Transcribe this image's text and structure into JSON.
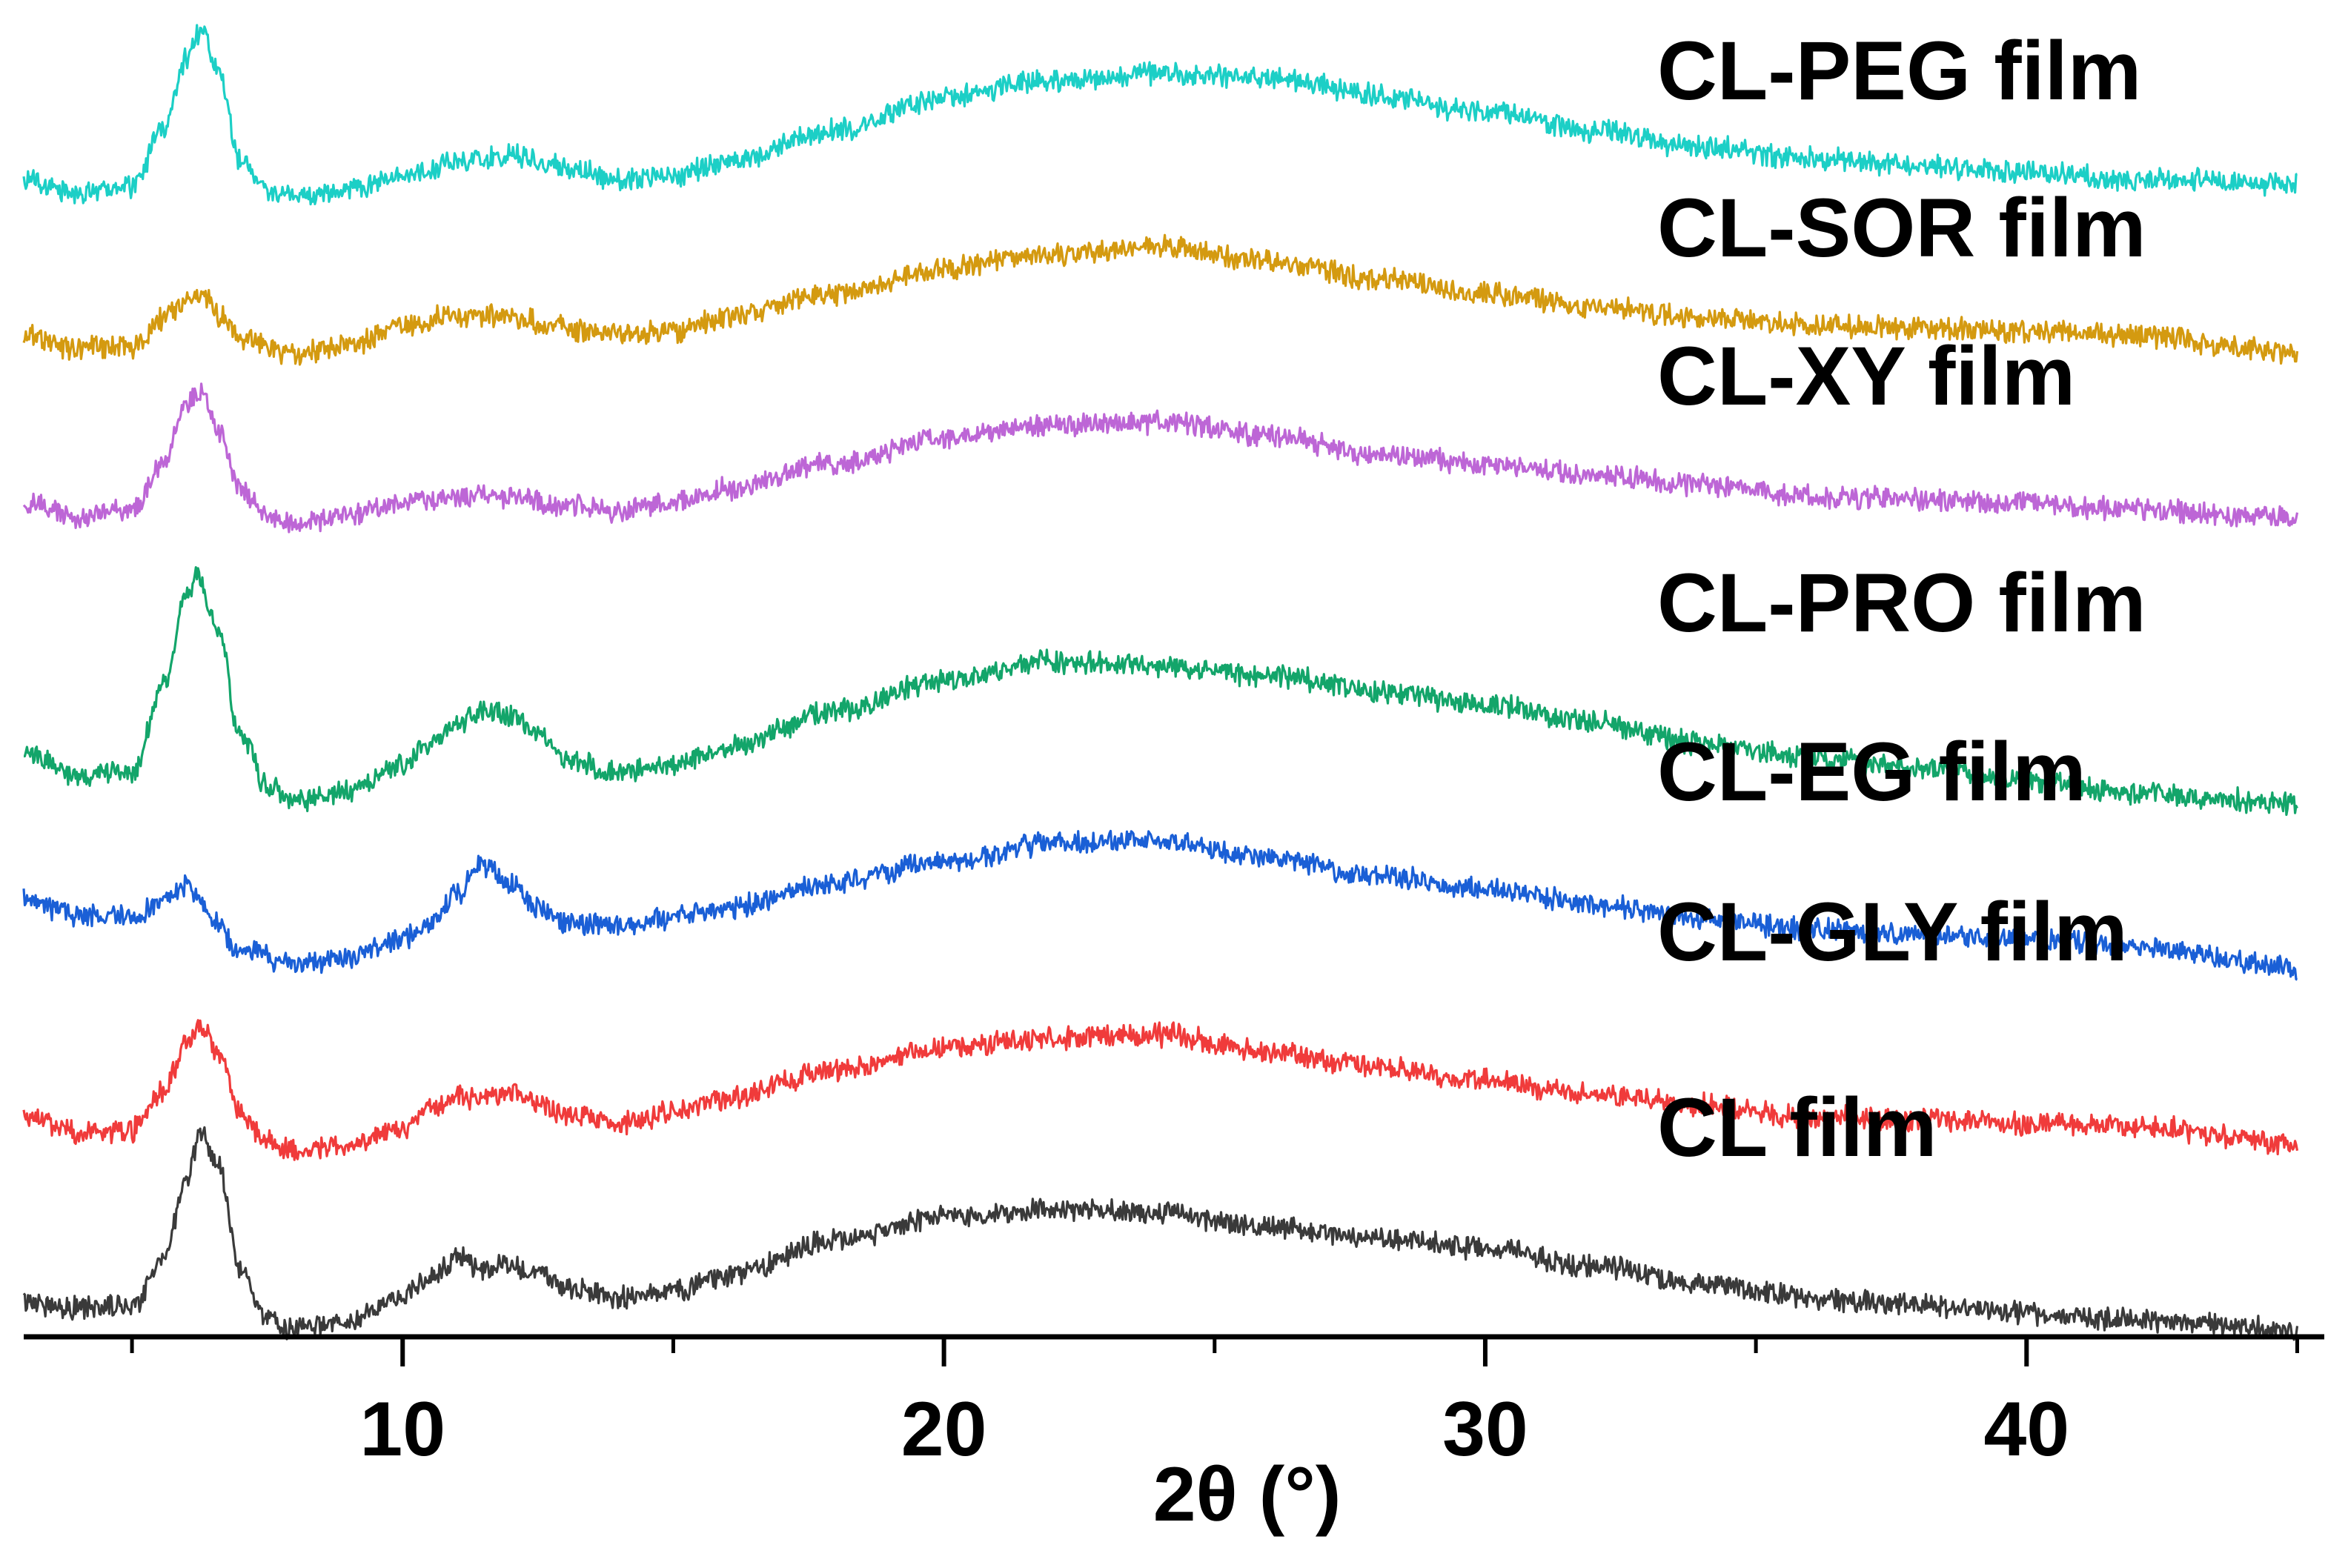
{
  "chart_data": {
    "type": "line",
    "title": "",
    "xlabel": "2θ (°)",
    "ylabel": "",
    "xlim": [
      3,
      45.5
    ],
    "ylim": [
      0,
      7.4
    ],
    "grid": false,
    "legend": "inline labels at right of each trace",
    "x_major_ticks": [
      10,
      20,
      30,
      40
    ],
    "x_minor_ticks": [
      5,
      15,
      25,
      35,
      45
    ],
    "x_tick_labels": [
      "10",
      "20",
      "30",
      "40"
    ],
    "series": [
      {
        "name": "CL film",
        "label": "CL film",
        "color": "#3a3a3a",
        "offset": 0.0,
        "points": [
          [
            3,
            0.2
          ],
          [
            4,
            0.16
          ],
          [
            5,
            0.18
          ],
          [
            5.6,
            0.45
          ],
          [
            6,
            0.9
          ],
          [
            6.3,
            1.16
          ],
          [
            6.6,
            0.95
          ],
          [
            7,
            0.38
          ],
          [
            7.5,
            0.1
          ],
          [
            8,
            0.04
          ],
          [
            9,
            0.08
          ],
          [
            10,
            0.22
          ],
          [
            10.5,
            0.34
          ],
          [
            11,
            0.44
          ],
          [
            11.5,
            0.38
          ],
          [
            12,
            0.4
          ],
          [
            12.5,
            0.36
          ],
          [
            13,
            0.28
          ],
          [
            14,
            0.22
          ],
          [
            15,
            0.26
          ],
          [
            16,
            0.35
          ],
          [
            18,
            0.55
          ],
          [
            20,
            0.68
          ],
          [
            22,
            0.72
          ],
          [
            24,
            0.7
          ],
          [
            26,
            0.62
          ],
          [
            28,
            0.56
          ],
          [
            30,
            0.5
          ],
          [
            32,
            0.4
          ],
          [
            34,
            0.3
          ],
          [
            36,
            0.22
          ],
          [
            38,
            0.18
          ],
          [
            40,
            0.13
          ],
          [
            42,
            0.1
          ],
          [
            45,
            0.04
          ]
        ]
      },
      {
        "name": "CL-GLY film",
        "label": "CL-GLY film",
        "color": "#f03b3b",
        "offset": 1.05,
        "points": [
          [
            3,
            0.2
          ],
          [
            4,
            0.1
          ],
          [
            5,
            0.12
          ],
          [
            5.6,
            0.35
          ],
          [
            6,
            0.62
          ],
          [
            6.3,
            0.72
          ],
          [
            6.6,
            0.55
          ],
          [
            7,
            0.22
          ],
          [
            7.5,
            0.06
          ],
          [
            8,
            0.0
          ],
          [
            9,
            0.04
          ],
          [
            10,
            0.14
          ],
          [
            10.5,
            0.24
          ],
          [
            11,
            0.3
          ],
          [
            12,
            0.32
          ],
          [
            12.5,
            0.28
          ],
          [
            13,
            0.2
          ],
          [
            14,
            0.16
          ],
          [
            15,
            0.22
          ],
          [
            16,
            0.3
          ],
          [
            18,
            0.46
          ],
          [
            20,
            0.58
          ],
          [
            22,
            0.64
          ],
          [
            24,
            0.66
          ],
          [
            26,
            0.56
          ],
          [
            28,
            0.48
          ],
          [
            30,
            0.4
          ],
          [
            32,
            0.32
          ],
          [
            34,
            0.26
          ],
          [
            36,
            0.2
          ],
          [
            38,
            0.18
          ],
          [
            40,
            0.16
          ],
          [
            42,
            0.14
          ],
          [
            45,
            0.04
          ]
        ]
      },
      {
        "name": "CL-EG film",
        "label": "CL-EG film",
        "color": "#1a5fd6",
        "offset": 2.05,
        "points": [
          [
            3,
            0.42
          ],
          [
            4,
            0.34
          ],
          [
            5,
            0.32
          ],
          [
            5.5,
            0.4
          ],
          [
            6,
            0.5
          ],
          [
            6.5,
            0.32
          ],
          [
            7,
            0.14
          ],
          [
            8,
            0.06
          ],
          [
            9,
            0.1
          ],
          [
            10,
            0.2
          ],
          [
            10.5,
            0.3
          ],
          [
            11,
            0.46
          ],
          [
            11.5,
            0.62
          ],
          [
            12,
            0.52
          ],
          [
            12.5,
            0.38
          ],
          [
            13,
            0.3
          ],
          [
            14,
            0.28
          ],
          [
            15,
            0.32
          ],
          [
            16,
            0.38
          ],
          [
            18,
            0.52
          ],
          [
            20,
            0.64
          ],
          [
            22,
            0.74
          ],
          [
            24,
            0.76
          ],
          [
            26,
            0.66
          ],
          [
            28,
            0.56
          ],
          [
            30,
            0.48
          ],
          [
            32,
            0.4
          ],
          [
            34,
            0.32
          ],
          [
            36,
            0.26
          ],
          [
            38,
            0.22
          ],
          [
            40,
            0.2
          ],
          [
            42,
            0.16
          ],
          [
            45,
            0.04
          ]
        ]
      },
      {
        "name": "CL-PRO film",
        "label": "CL-PRO film",
        "color": "#13a56a",
        "offset": 3.0,
        "points": [
          [
            3,
            0.32
          ],
          [
            4,
            0.18
          ],
          [
            5,
            0.2
          ],
          [
            5.6,
            0.7
          ],
          [
            6,
            1.18
          ],
          [
            6.2,
            1.3
          ],
          [
            6.6,
            1.0
          ],
          [
            7,
            0.4
          ],
          [
            7.5,
            0.12
          ],
          [
            8,
            0.04
          ],
          [
            9,
            0.08
          ],
          [
            10,
            0.24
          ],
          [
            10.5,
            0.36
          ],
          [
            11,
            0.46
          ],
          [
            11.5,
            0.54
          ],
          [
            12,
            0.52
          ],
          [
            12.5,
            0.42
          ],
          [
            13,
            0.26
          ],
          [
            14,
            0.2
          ],
          [
            15,
            0.24
          ],
          [
            16,
            0.34
          ],
          [
            18,
            0.54
          ],
          [
            20,
            0.72
          ],
          [
            22,
            0.82
          ],
          [
            24,
            0.8
          ],
          [
            26,
            0.74
          ],
          [
            28,
            0.66
          ],
          [
            30,
            0.58
          ],
          [
            32,
            0.48
          ],
          [
            34,
            0.36
          ],
          [
            36,
            0.28
          ],
          [
            38,
            0.22
          ],
          [
            40,
            0.14
          ],
          [
            42,
            0.08
          ],
          [
            45,
            0.02
          ]
        ]
      },
      {
        "name": "CL-XY film",
        "label": "CL-XY film",
        "color": "#bd66d6",
        "offset": 4.6,
        "points": [
          [
            3,
            0.12
          ],
          [
            4,
            0.04
          ],
          [
            5,
            0.08
          ],
          [
            5.6,
            0.35
          ],
          [
            6,
            0.68
          ],
          [
            6.3,
            0.74
          ],
          [
            6.6,
            0.52
          ],
          [
            7,
            0.2
          ],
          [
            7.5,
            0.04
          ],
          [
            8,
            0.0
          ],
          [
            9,
            0.04
          ],
          [
            10,
            0.12
          ],
          [
            11,
            0.16
          ],
          [
            12,
            0.16
          ],
          [
            13,
            0.1
          ],
          [
            14,
            0.08
          ],
          [
            15,
            0.12
          ],
          [
            16,
            0.2
          ],
          [
            18,
            0.34
          ],
          [
            20,
            0.48
          ],
          [
            22,
            0.56
          ],
          [
            24,
            0.58
          ],
          [
            26,
            0.5
          ],
          [
            28,
            0.4
          ],
          [
            30,
            0.34
          ],
          [
            32,
            0.28
          ],
          [
            34,
            0.22
          ],
          [
            36,
            0.16
          ],
          [
            38,
            0.14
          ],
          [
            40,
            0.12
          ],
          [
            42,
            0.08
          ],
          [
            45,
            0.04
          ]
        ]
      },
      {
        "name": "CL-SOR film",
        "label": "CL-SOR film",
        "color": "#d49a10",
        "offset": 5.55,
        "points": [
          [
            3,
            0.12
          ],
          [
            4,
            0.04
          ],
          [
            5,
            0.06
          ],
          [
            5.6,
            0.22
          ],
          [
            6,
            0.32
          ],
          [
            6.3,
            0.34
          ],
          [
            6.6,
            0.24
          ],
          [
            7,
            0.1
          ],
          [
            8,
            0.02
          ],
          [
            9,
            0.06
          ],
          [
            10,
            0.18
          ],
          [
            11,
            0.24
          ],
          [
            12,
            0.22
          ],
          [
            13,
            0.16
          ],
          [
            14,
            0.12
          ],
          [
            15,
            0.14
          ],
          [
            16,
            0.22
          ],
          [
            18,
            0.36
          ],
          [
            20,
            0.5
          ],
          [
            22,
            0.58
          ],
          [
            24,
            0.62
          ],
          [
            26,
            0.54
          ],
          [
            28,
            0.44
          ],
          [
            30,
            0.36
          ],
          [
            32,
            0.28
          ],
          [
            34,
            0.22
          ],
          [
            36,
            0.18
          ],
          [
            38,
            0.16
          ],
          [
            40,
            0.14
          ],
          [
            42,
            0.12
          ],
          [
            45,
            0.02
          ]
        ]
      },
      {
        "name": "CL-PEG film",
        "label": "CL-PEG film",
        "color": "#1ccfc6",
        "offset": 6.45,
        "points": [
          [
            3,
            0.1
          ],
          [
            4,
            0.02
          ],
          [
            5,
            0.06
          ],
          [
            5.6,
            0.4
          ],
          [
            6,
            0.78
          ],
          [
            6.3,
            0.96
          ],
          [
            6.6,
            0.72
          ],
          [
            7,
            0.2
          ],
          [
            7.5,
            0.04
          ],
          [
            8,
            0.0
          ],
          [
            9,
            0.04
          ],
          [
            10,
            0.12
          ],
          [
            11,
            0.2
          ],
          [
            12,
            0.24
          ],
          [
            13,
            0.18
          ],
          [
            14,
            0.1
          ],
          [
            15,
            0.12
          ],
          [
            16,
            0.2
          ],
          [
            18,
            0.38
          ],
          [
            20,
            0.56
          ],
          [
            22,
            0.66
          ],
          [
            24,
            0.7
          ],
          [
            26,
            0.68
          ],
          [
            28,
            0.58
          ],
          [
            30,
            0.48
          ],
          [
            32,
            0.38
          ],
          [
            34,
            0.28
          ],
          [
            36,
            0.22
          ],
          [
            38,
            0.18
          ],
          [
            40,
            0.14
          ],
          [
            42,
            0.1
          ],
          [
            45,
            0.08
          ]
        ]
      }
    ]
  }
}
